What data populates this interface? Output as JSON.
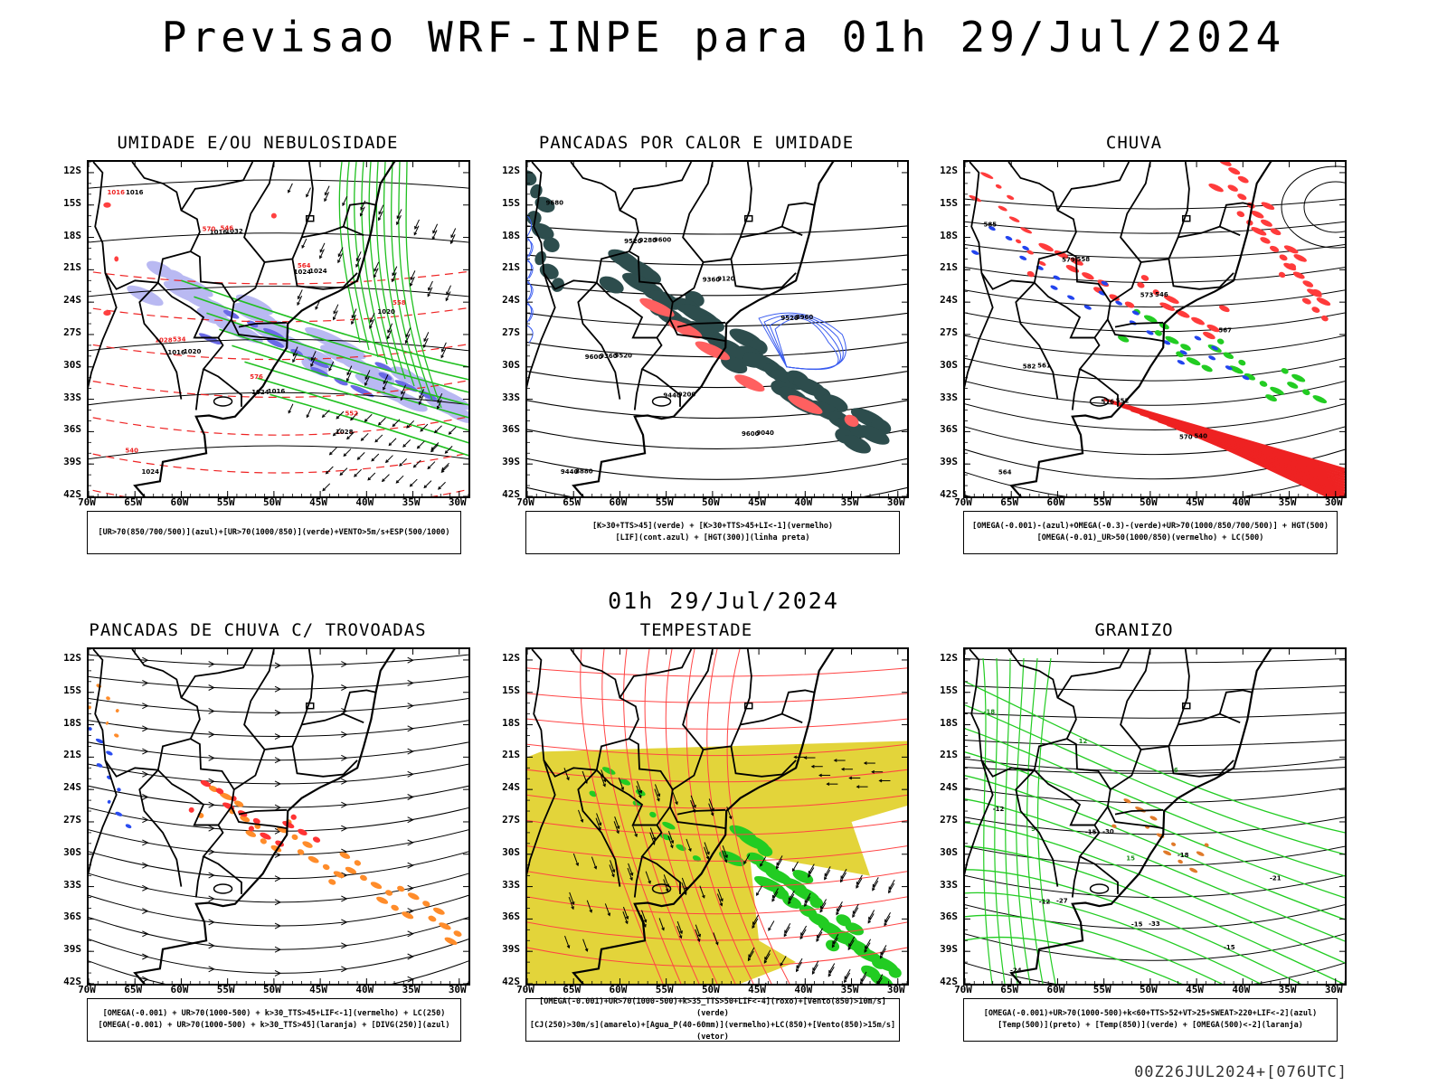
{
  "title": "Previsao WRF-INPE  para 01h 29/Jul/2024",
  "mid_title": "01h 29/Jul/2024",
  "footer": "00Z26JUL2024+[076UTC]",
  "axes": {
    "lat_labels": [
      "12S",
      "15S",
      "18S",
      "21S",
      "24S",
      "27S",
      "30S",
      "33S",
      "36S",
      "39S",
      "42S"
    ],
    "lon_labels": [
      "70W",
      "65W",
      "60W",
      "55W",
      "50W",
      "45W",
      "40W",
      "35W",
      "30W"
    ]
  },
  "panels": [
    {
      "title": "UMIDADE E/OU NEBULOSIDADE",
      "legend": [
        "[UR>70(850/700/500)](azul)+[UR>70(1000/850)](verde)+VENTO>5m/s+ESP(500/1000)"
      ],
      "overlays": {
        "blue_band": true,
        "green_contours": true,
        "red_dash": true,
        "black_pressure": true
      },
      "labels": [
        "1016",
        "1016",
        "1016",
        "1024",
        "1024",
        "1028",
        "1020",
        "1024",
        "1020",
        "1032",
        "1016",
        "1024",
        "1016",
        "1028",
        "570",
        "576",
        "564",
        "552",
        "558",
        "540",
        "534",
        "546"
      ]
    },
    {
      "title": "PANCADAS POR CALOR E UMIDADE",
      "legend": [
        "[K>30+TTS>45](verde) + [K>30+TTS>45+LI<-1](vermelho)",
        "[LIF](cont.azul) + [HGT(300)](linha preta)"
      ],
      "labels": [
        "9680",
        "9600",
        "9520",
        "9440",
        "9360",
        "9600",
        "9520",
        "9440",
        "9360",
        "9280",
        "9200",
        "9120",
        "9040",
        "8960",
        "8880",
        "9520",
        "9600"
      ]
    },
    {
      "title": "CHUVA",
      "legend": [
        "[OMEGA(-0.001)-(azul)+OMEGA(-0.3)-(verde)+UR>70(1000/850/700/500)] + HGT(500)",
        "[OMEGA(-0.01)_UR>50(1000/850)(vermelho) + LC(500)"
      ],
      "labels": [
        "585",
        "582",
        "579",
        "576",
        "573",
        "570",
        "567",
        "564",
        "561",
        "558",
        "552",
        "546",
        "540"
      ]
    },
    {
      "title": "PANCADAS DE CHUVA C/ TROVOADAS",
      "legend": [
        "[OMEGA(-0.001) + UR>70(1000-500) + k>30_TTS>45+LIF<-1](vermelho) + LC(250)",
        "[OMEGA(-0.001) + UR>70(1000-500) + k>30_TTS>45](laranja) + [DIVG(250)](azul)"
      ],
      "labels": []
    },
    {
      "title": "TEMPESTADE",
      "legend": [
        "[OMEGA(-0.001)+UR>70(1000-500)+k>35_TTS>50+LIF<-4](roxo)+[Vento(850)>10m/s](verde)",
        "[CJ(250)>30m/s](amarelo)+[Agua_P(40-60mm)](vermelho)+LC(850)+[Vento(850)>15m/s](vetor)"
      ],
      "labels": []
    },
    {
      "title": "GRANIZO",
      "legend": [
        "[OMEGA(-0.001)+UR>70(1000-500)+k<60+TTS>52+VT>25+SWEAT>220+LIF<-2](azul)",
        "[Temp(500)](preto) + [Temp(850)](verde) + [OMEGA(500)<-2](laranja)"
      ],
      "labels": [
        "-12",
        "-12",
        "-15",
        "-15",
        "-18",
        "-15",
        "-21",
        "-24",
        "-27",
        "-30",
        "-33",
        "-18",
        "9",
        "12",
        "15",
        "6"
      ]
    }
  ]
}
